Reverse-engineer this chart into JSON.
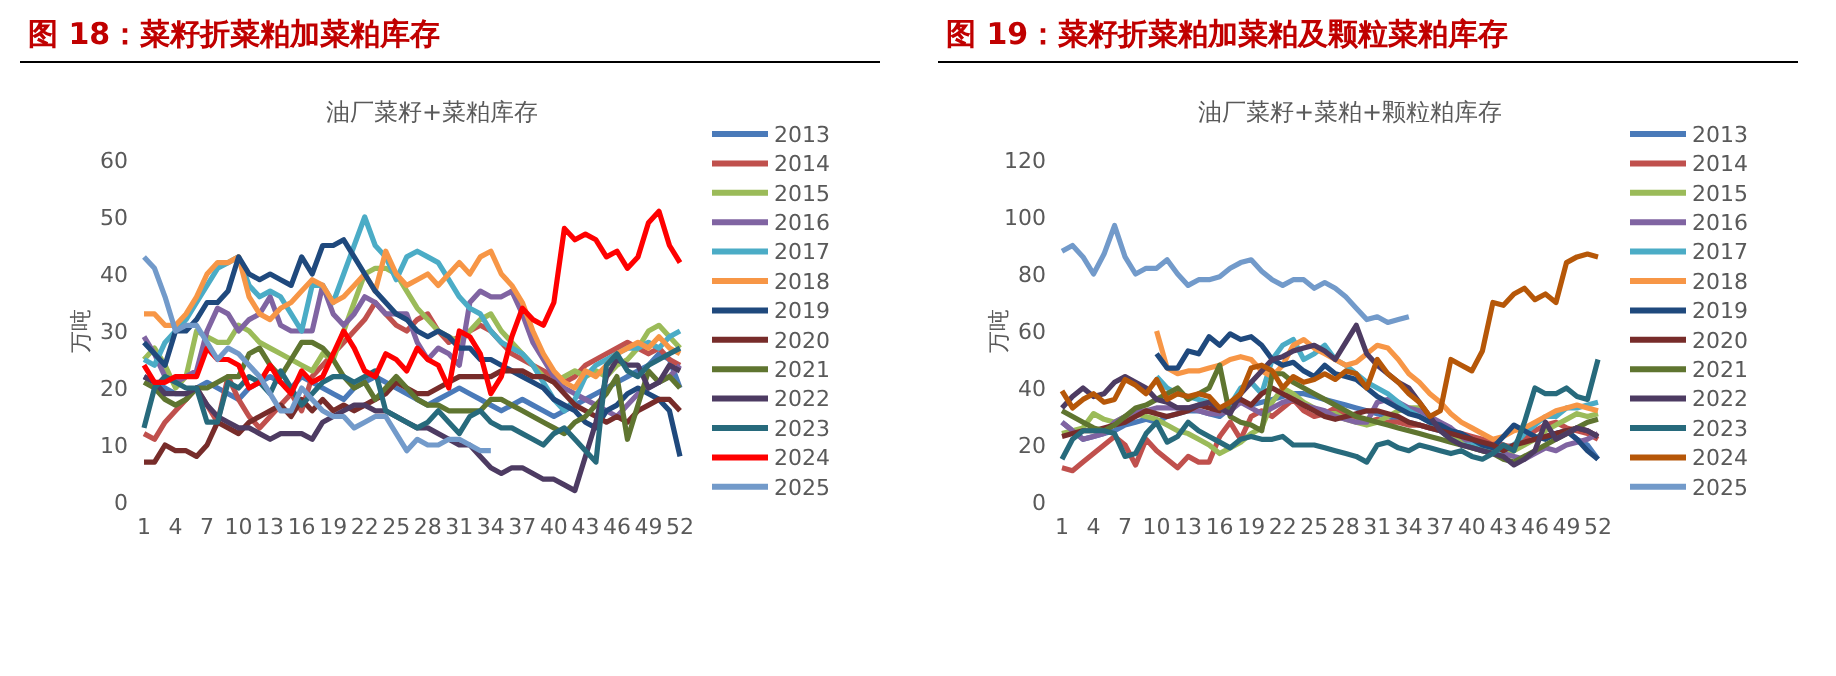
{
  "chart_data": [
    {
      "type": "line",
      "title": "图 18：菜籽折菜粕加菜粕库存",
      "subtitle": "油厂菜籽+菜粕库存",
      "ylabel": "万吨",
      "xlim": [
        1,
        52
      ],
      "xticks": [
        1,
        4,
        7,
        10,
        13,
        16,
        19,
        22,
        25,
        28,
        31,
        34,
        37,
        40,
        43,
        46,
        49,
        52
      ],
      "ylim": [
        0,
        60
      ],
      "yticks": [
        0,
        10,
        20,
        30,
        40,
        50,
        60
      ],
      "grid": false,
      "legend": "right",
      "marker": "none",
      "line_style": "solid",
      "x": [
        1,
        2,
        3,
        4,
        5,
        6,
        7,
        8,
        9,
        10,
        11,
        12,
        13,
        14,
        15,
        16,
        17,
        18,
        19,
        20,
        21,
        22,
        23,
        24,
        25,
        26,
        27,
        28,
        29,
        30,
        31,
        32,
        33,
        34,
        35,
        36,
        37,
        38,
        39,
        40,
        41,
        42,
        43,
        44,
        45,
        46,
        47,
        48,
        49,
        50,
        51,
        52
      ],
      "series": [
        {
          "name": "2013",
          "color": "#4a7ab9",
          "values": [
            22,
            21,
            20,
            19,
            19,
            20,
            21,
            20,
            19,
            18,
            20,
            21,
            22,
            21,
            20,
            22,
            21,
            20,
            19,
            18,
            20,
            21,
            22,
            21,
            20,
            19,
            18,
            17,
            18,
            19,
            20,
            19,
            18,
            17,
            16,
            17,
            18,
            17,
            16,
            15,
            16,
            17,
            18,
            19,
            20,
            21,
            22,
            23,
            24,
            26,
            25,
            20
          ]
        },
        {
          "name": "2014",
          "color": "#c0504d",
          "values": [
            12,
            11,
            14,
            16,
            18,
            20,
            17,
            14,
            22,
            18,
            15,
            13,
            15,
            17,
            19,
            16,
            22,
            24,
            26,
            28,
            30,
            32,
            35,
            33,
            31,
            30,
            32,
            33,
            30,
            28,
            29,
            30,
            31,
            30,
            28,
            26,
            25,
            24,
            23,
            22,
            21,
            22,
            24,
            25,
            26,
            27,
            28,
            27,
            26,
            27,
            25,
            24
          ]
        },
        {
          "name": "2015",
          "color": "#9bbb59",
          "values": [
            25,
            27,
            24,
            20,
            22,
            30,
            29,
            28,
            28,
            31,
            30,
            28,
            27,
            26,
            25,
            24,
            23,
            26,
            25,
            30,
            35,
            40,
            41,
            41,
            40,
            37,
            34,
            32,
            30,
            29,
            28,
            30,
            32,
            33,
            30,
            28,
            26,
            24,
            22,
            21,
            22,
            23,
            22,
            23,
            22,
            24,
            25,
            27,
            30,
            31,
            29,
            27
          ]
        },
        {
          "name": "2016",
          "color": "#8064a2",
          "values": [
            29,
            26,
            22,
            21,
            22,
            23,
            30,
            34,
            33,
            30,
            32,
            33,
            36,
            31,
            30,
            30,
            30,
            38,
            33,
            31,
            33,
            36,
            35,
            33,
            33,
            33,
            28,
            25,
            27,
            26,
            24,
            35,
            37,
            36,
            36,
            37,
            33,
            28,
            25,
            22,
            20,
            19,
            18,
            17,
            16,
            15,
            17,
            19,
            20,
            21,
            22,
            24
          ]
        },
        {
          "name": "2017",
          "color": "#4bacc6",
          "values": [
            25,
            24,
            28,
            30,
            32,
            35,
            38,
            41,
            42,
            43,
            38,
            36,
            37,
            36,
            33,
            30,
            38,
            38,
            35,
            40,
            45,
            50,
            45,
            43,
            39,
            43,
            44,
            43,
            42,
            39,
            36,
            34,
            33,
            30,
            28,
            27,
            26,
            24,
            21,
            18,
            16,
            18,
            22,
            24,
            25,
            26,
            27,
            27,
            28,
            27,
            29,
            30
          ]
        },
        {
          "name": "2018",
          "color": "#f79646",
          "values": [
            33,
            33,
            31,
            31,
            33,
            36,
            40,
            42,
            42,
            43,
            36,
            33,
            32,
            34,
            35,
            37,
            39,
            38,
            35,
            36,
            38,
            40,
            37,
            44,
            40,
            38,
            39,
            40,
            38,
            40,
            42,
            40,
            43,
            44,
            40,
            38,
            35,
            30,
            26,
            23,
            21,
            20,
            23,
            22,
            24,
            26,
            27,
            28,
            27,
            29,
            27,
            26
          ]
        },
        {
          "name": "2019",
          "color": "#1f497d",
          "values": [
            28,
            26,
            24,
            30,
            30,
            32,
            35,
            35,
            37,
            43,
            40,
            39,
            40,
            39,
            38,
            43,
            40,
            45,
            45,
            46,
            43,
            40,
            37,
            35,
            33,
            32,
            30,
            29,
            30,
            29,
            27,
            27,
            25,
            25,
            24,
            23,
            22,
            21,
            20,
            18,
            17,
            16,
            14,
            13,
            16,
            17,
            19,
            20,
            19,
            18,
            16,
            8
          ]
        },
        {
          "name": "2020",
          "color": "#772c2a",
          "values": [
            7,
            7,
            10,
            9,
            9,
            8,
            10,
            14,
            13,
            12,
            14,
            15,
            16,
            17,
            15,
            18,
            16,
            18,
            16,
            17,
            16,
            17,
            18,
            19,
            21,
            20,
            19,
            19,
            20,
            21,
            22,
            22,
            22,
            22,
            23,
            23,
            23,
            22,
            22,
            21,
            19,
            17,
            16,
            15,
            14,
            15,
            14,
            16,
            17,
            18,
            18,
            16
          ]
        },
        {
          "name": "2021",
          "color": "#5f7530",
          "values": [
            21,
            20,
            18,
            17,
            18,
            20,
            20,
            21,
            22,
            22,
            26,
            27,
            24,
            22,
            25,
            28,
            28,
            27,
            25,
            22,
            20,
            21,
            18,
            20,
            22,
            20,
            18,
            17,
            17,
            16,
            16,
            16,
            16,
            18,
            18,
            17,
            16,
            15,
            14,
            13,
            12,
            14,
            15,
            17,
            19,
            22,
            11,
            17,
            23,
            21,
            22,
            20
          ]
        },
        {
          "name": "2022",
          "color": "#4d3b62",
          "values": [
            22,
            21,
            19,
            19,
            19,
            20,
            17,
            15,
            14,
            13,
            13,
            12,
            11,
            12,
            12,
            12,
            11,
            14,
            15,
            16,
            17,
            17,
            16,
            16,
            15,
            14,
            13,
            13,
            12,
            11,
            10,
            10,
            8,
            6,
            5,
            6,
            6,
            5,
            4,
            4,
            3,
            2,
            8,
            14,
            22,
            25,
            24,
            24,
            20,
            21,
            24,
            23
          ]
        },
        {
          "name": "2023",
          "color": "#276a7c",
          "values": [
            13,
            20,
            22,
            21,
            20,
            20,
            14,
            14,
            21,
            20,
            22,
            21,
            19,
            23,
            20,
            17,
            19,
            21,
            22,
            22,
            21,
            22,
            23,
            16,
            15,
            14,
            13,
            14,
            16,
            14,
            12,
            15,
            16,
            14,
            13,
            13,
            12,
            11,
            10,
            12,
            13,
            11,
            9,
            7,
            24,
            26,
            23,
            22,
            24,
            25,
            26,
            27
          ]
        },
        {
          "name": "2024",
          "color": "#ff0000",
          "values": [
            24,
            21,
            21,
            22,
            22,
            22,
            27,
            25,
            25,
            24,
            20,
            21,
            24,
            21,
            19,
            23,
            21,
            22,
            26,
            30,
            27,
            23,
            22,
            26,
            25,
            23,
            27,
            25,
            24,
            20,
            30,
            29,
            26,
            19,
            22,
            29,
            34,
            32,
            31,
            35,
            48,
            46,
            47,
            46,
            43,
            44,
            41,
            43,
            49,
            51,
            45,
            42
          ]
        },
        {
          "name": "2025",
          "color": "#729aca",
          "values": [
            43,
            41,
            36,
            30,
            31,
            31,
            28,
            25,
            27,
            26,
            24,
            22,
            19,
            16,
            16,
            20,
            18,
            16,
            15,
            15,
            13,
            14,
            15,
            15,
            12,
            9,
            11,
            10,
            10,
            11,
            11,
            10,
            9,
            9,
            null,
            null,
            null,
            null,
            null,
            null,
            null,
            null,
            null,
            null,
            null,
            null,
            null,
            null,
            null,
            null,
            null,
            null
          ]
        }
      ]
    },
    {
      "type": "line",
      "title": "图 19：菜籽折菜粕加菜粕及颗粒菜粕库存",
      "subtitle": "油厂菜籽+菜粕+颗粒粕库存",
      "ylabel": "万吨",
      "xlim": [
        1,
        52
      ],
      "xticks": [
        1,
        4,
        7,
        10,
        13,
        16,
        19,
        22,
        25,
        28,
        31,
        34,
        37,
        40,
        43,
        46,
        49,
        52
      ],
      "ylim": [
        0,
        120
      ],
      "yticks": [
        0,
        20,
        40,
        60,
        80,
        100,
        120
      ],
      "grid": false,
      "legend": "right",
      "marker": "none",
      "line_style": "solid",
      "x": [
        1,
        2,
        3,
        4,
        5,
        6,
        7,
        8,
        9,
        10,
        11,
        12,
        13,
        14,
        15,
        16,
        17,
        18,
        19,
        20,
        21,
        22,
        23,
        24,
        25,
        26,
        27,
        28,
        29,
        30,
        31,
        32,
        33,
        34,
        35,
        36,
        37,
        38,
        39,
        40,
        41,
        42,
        43,
        44,
        45,
        46,
        47,
        48,
        49,
        50,
        51,
        52
      ],
      "series": [
        {
          "name": "2013",
          "color": "#4a7ab9",
          "values": [
            28,
            25,
            22,
            23,
            24,
            25,
            27,
            28,
            29,
            28,
            30,
            31,
            32,
            32,
            31,
            30,
            33,
            35,
            34,
            35,
            36,
            37,
            38,
            38,
            37,
            36,
            35,
            34,
            33,
            32,
            31,
            30,
            29,
            28,
            27,
            26,
            25,
            24,
            23,
            22,
            21,
            20,
            19,
            20,
            21,
            22,
            23,
            24,
            25,
            22,
            20,
            15
          ]
        },
        {
          "name": "2014",
          "color": "#c0504d",
          "values": [
            12,
            11,
            14,
            17,
            20,
            23,
            20,
            13,
            22,
            18,
            15,
            12,
            16,
            14,
            14,
            23,
            28,
            22,
            30,
            32,
            30,
            33,
            36,
            32,
            30,
            31,
            33,
            30,
            29,
            28,
            29,
            28,
            28,
            27,
            27,
            26,
            26,
            25,
            24,
            23,
            22,
            21,
            20,
            19,
            22,
            25,
            27,
            28,
            26,
            25,
            24,
            22
          ]
        },
        {
          "name": "2015",
          "color": "#9bbb59",
          "values": [
            24,
            25,
            26,
            31,
            29,
            28,
            30,
            31,
            30,
            29,
            27,
            25,
            24,
            22,
            20,
            17,
            19,
            21,
            24,
            26,
            35,
            40,
            38,
            35,
            33,
            31,
            31,
            29,
            28,
            27,
            28,
            30,
            32,
            33,
            33,
            30,
            27,
            24,
            21,
            19,
            18,
            17,
            16,
            18,
            20,
            22,
            25,
            27,
            29,
            31,
            30,
            31
          ]
        },
        {
          "name": "2016",
          "color": "#8064a2",
          "values": [
            28,
            25,
            22,
            23,
            24,
            28,
            30,
            32,
            32,
            33,
            33,
            33,
            33,
            32,
            31,
            31,
            32,
            35,
            33,
            31,
            33,
            35,
            36,
            34,
            33,
            32,
            30,
            29,
            28,
            28,
            35,
            36,
            35,
            33,
            32,
            30,
            28,
            26,
            23,
            20,
            19,
            18,
            17,
            16,
            15,
            17,
            19,
            18,
            20,
            21,
            22,
            24
          ]
        },
        {
          "name": "2017",
          "color": "#4bacc6",
          "values": [
            null,
            null,
            null,
            null,
            null,
            null,
            null,
            null,
            null,
            44,
            40,
            38,
            37,
            36,
            35,
            32,
            34,
            40,
            42,
            38,
            50,
            55,
            57,
            50,
            52,
            55,
            50,
            48,
            45,
            42,
            40,
            38,
            35,
            32,
            30,
            28,
            25,
            22,
            20,
            20,
            19,
            18,
            18,
            20,
            24,
            27,
            30,
            30,
            33,
            33,
            34,
            35
          ]
        },
        {
          "name": "2018",
          "color": "#f79646",
          "values": [
            null,
            null,
            null,
            null,
            null,
            null,
            null,
            null,
            null,
            60,
            47,
            45,
            46,
            46,
            47,
            48,
            50,
            51,
            50,
            46,
            44,
            48,
            55,
            57,
            54,
            52,
            50,
            48,
            49,
            52,
            55,
            54,
            50,
            45,
            42,
            38,
            35,
            31,
            28,
            26,
            24,
            22,
            23,
            25,
            26,
            28,
            30,
            32,
            33,
            34,
            33,
            32
          ]
        },
        {
          "name": "2019",
          "color": "#1f497d",
          "values": [
            null,
            null,
            null,
            null,
            null,
            null,
            null,
            null,
            null,
            52,
            47,
            47,
            53,
            52,
            58,
            55,
            59,
            57,
            58,
            55,
            50,
            48,
            49,
            46,
            44,
            48,
            45,
            44,
            43,
            40,
            37,
            35,
            33,
            31,
            30,
            28,
            27,
            25,
            24,
            22,
            20,
            19,
            23,
            27,
            25,
            23,
            22,
            24,
            25,
            22,
            18,
            15
          ]
        },
        {
          "name": "2020",
          "color": "#772c2a",
          "values": [
            23,
            24,
            25,
            25,
            26,
            27,
            28,
            30,
            32,
            31,
            30,
            31,
            32,
            34,
            33,
            32,
            35,
            36,
            34,
            38,
            40,
            38,
            36,
            34,
            32,
            30,
            29,
            30,
            31,
            32,
            32,
            31,
            30,
            28,
            27,
            26,
            25,
            24,
            23,
            22,
            21,
            20,
            18,
            20,
            21,
            22,
            23,
            24,
            25,
            26,
            25,
            23
          ]
        },
        {
          "name": "2021",
          "color": "#5f7530",
          "values": [
            32,
            30,
            28,
            26,
            25,
            27,
            30,
            33,
            34,
            36,
            38,
            40,
            36,
            38,
            40,
            48,
            30,
            28,
            27,
            25,
            45,
            45,
            42,
            40,
            38,
            36,
            34,
            32,
            30,
            29,
            28,
            27,
            26,
            25,
            24,
            23,
            22,
            21,
            20,
            19,
            18,
            17,
            15,
            14,
            16,
            18,
            20,
            22,
            24,
            26,
            28,
            29
          ]
        },
        {
          "name": "2022",
          "color": "#4d3b62",
          "values": [
            33,
            37,
            40,
            37,
            38,
            42,
            44,
            42,
            40,
            36,
            35,
            33,
            33,
            34,
            35,
            33,
            31,
            38,
            42,
            46,
            50,
            51,
            53,
            54,
            55,
            53,
            50,
            56,
            62,
            52,
            48,
            45,
            42,
            40,
            35,
            30,
            25,
            22,
            20,
            19,
            18,
            17,
            16,
            13,
            15,
            18,
            28,
            22,
            24,
            26,
            25,
            23
          ]
        },
        {
          "name": "2023",
          "color": "#276a7c",
          "values": [
            15,
            22,
            25,
            25,
            25,
            24,
            16,
            17,
            24,
            28,
            21,
            23,
            28,
            25,
            23,
            21,
            19,
            22,
            23,
            22,
            22,
            23,
            20,
            20,
            20,
            19,
            18,
            17,
            16,
            14,
            20,
            21,
            19,
            18,
            20,
            19,
            18,
            17,
            18,
            16,
            15,
            17,
            20,
            18,
            28,
            40,
            38,
            38,
            40,
            37,
            36,
            50
          ]
        },
        {
          "name": "2024",
          "color": "#b65708",
          "values": [
            39,
            33,
            36,
            38,
            35,
            36,
            43,
            41,
            38,
            43,
            36,
            38,
            37,
            38,
            37,
            33,
            35,
            38,
            47,
            48,
            46,
            40,
            44,
            42,
            43,
            45,
            43,
            46,
            45,
            40,
            50,
            45,
            42,
            38,
            35,
            30,
            32,
            50,
            48,
            46,
            53,
            70,
            69,
            73,
            75,
            71,
            73,
            70,
            84,
            86,
            87,
            86
          ]
        },
        {
          "name": "2025",
          "color": "#729aca",
          "values": [
            88,
            90,
            86,
            80,
            87,
            97,
            86,
            80,
            82,
            82,
            85,
            80,
            76,
            78,
            78,
            79,
            82,
            84,
            85,
            81,
            78,
            76,
            78,
            78,
            75,
            77,
            75,
            72,
            68,
            64,
            65,
            63,
            64,
            65,
            null,
            null,
            null,
            null,
            null,
            null,
            null,
            null,
            null,
            null,
            null,
            null,
            null,
            null,
            null,
            null,
            null,
            null
          ]
        }
      ]
    }
  ]
}
